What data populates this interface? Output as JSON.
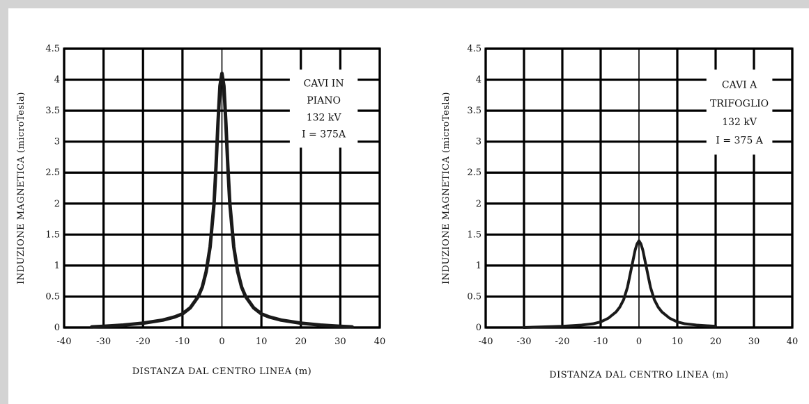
{
  "chart_data": [
    {
      "type": "line",
      "title": "",
      "xlabel": "DISTANZA DAL CENTRO LINEA (m)",
      "ylabel": "INDUZIONE MAGNETICA  (microTesla)",
      "xlim": [
        -40,
        40
      ],
      "ylim": [
        0,
        4.5
      ],
      "grid": true,
      "x_ticks": [
        "-40",
        "-30",
        "-20",
        "-10",
        "0",
        "10",
        "20",
        "30",
        "40"
      ],
      "y_ticks": [
        "0",
        "0.5",
        "1",
        "1.5",
        "2",
        "2.5",
        "3",
        "3.5",
        "4",
        "4.5"
      ],
      "annotation": [
        "CAVI IN",
        "PIANO",
        "132 kV",
        "I = 375A"
      ],
      "series": [
        {
          "x": [
            -33,
            -30,
            -25,
            -20,
            -15,
            -12,
            -10,
            -8,
            -6,
            -5,
            -4,
            -3,
            -2,
            -1.5,
            -1,
            -0.5,
            0,
            0.5,
            1,
            1.5,
            2,
            3,
            4,
            5,
            6,
            8,
            10,
            12,
            15,
            20,
            25,
            30,
            33
          ],
          "y": [
            0.01,
            0.02,
            0.04,
            0.07,
            0.12,
            0.17,
            0.22,
            0.32,
            0.5,
            0.65,
            0.9,
            1.3,
            2.0,
            2.6,
            3.3,
            3.9,
            4.1,
            3.9,
            3.3,
            2.6,
            2.0,
            1.3,
            0.9,
            0.65,
            0.5,
            0.32,
            0.22,
            0.17,
            0.12,
            0.07,
            0.04,
            0.02,
            0.01
          ],
          "color": "#1a1a1a"
        }
      ]
    },
    {
      "type": "line",
      "title": "",
      "xlabel": "DISTANZA DAL CENTRO LINEA (m)",
      "ylabel": "INDUZIONE MAGNETICA  (microTesla)",
      "xlim": [
        -40,
        40
      ],
      "ylim": [
        0,
        4.5
      ],
      "grid": true,
      "x_ticks": [
        "-40",
        "-30",
        "-20",
        "-10",
        "0",
        "10",
        "20",
        "30",
        "40"
      ],
      "y_ticks": [
        "0",
        "0.5",
        "1",
        "1.5",
        "2",
        "2.5",
        "3",
        "3.5",
        "4",
        "4.5"
      ],
      "annotation": [
        "CAVI A",
        "TRIFOGLIO",
        "132 kV",
        "I = 375 A"
      ],
      "series": [
        {
          "x": [
            -30,
            -20,
            -15,
            -12,
            -10,
            -8,
            -6,
            -5,
            -4,
            -3,
            -2,
            -1,
            -0.5,
            0,
            0.5,
            1,
            2,
            3,
            4,
            5,
            6,
            8,
            10,
            12,
            15,
            20
          ],
          "y": [
            0.0,
            0.02,
            0.04,
            0.06,
            0.09,
            0.15,
            0.25,
            0.33,
            0.45,
            0.65,
            0.95,
            1.25,
            1.35,
            1.4,
            1.35,
            1.25,
            0.95,
            0.65,
            0.45,
            0.33,
            0.25,
            0.15,
            0.09,
            0.06,
            0.04,
            0.02
          ],
          "color": "#1a1a1a"
        }
      ]
    }
  ]
}
